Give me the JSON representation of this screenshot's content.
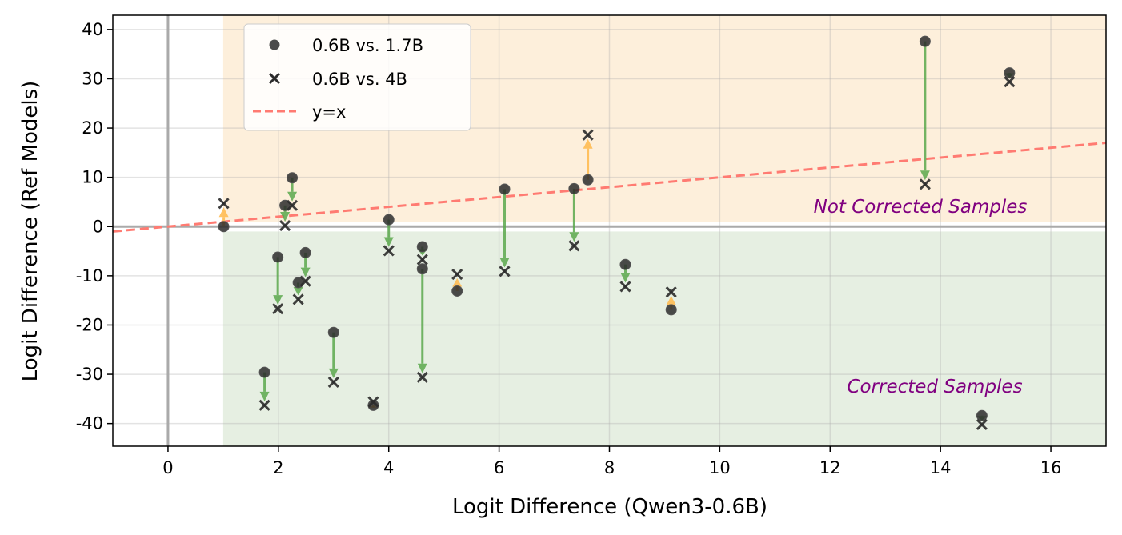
{
  "chart_data": {
    "type": "scatter",
    "title": "",
    "xlabel": "Logit Difference (Qwen3-0.6B)",
    "ylabel": "Logit Difference (Ref Models)",
    "xlim": [
      -1,
      17
    ],
    "ylim": [
      -44.6,
      42.9
    ],
    "xticks": [
      0,
      2,
      4,
      6,
      8,
      10,
      12,
      14,
      16
    ],
    "yticks": [
      40,
      30,
      20,
      10,
      0,
      -10,
      -20,
      -30,
      -40
    ],
    "grid": true,
    "legend_placement": "upper-left",
    "legend": [
      {
        "label": "0.6B vs. 1.7B",
        "marker": "circle"
      },
      {
        "label": "0.6B vs. 4B",
        "marker": "x"
      },
      {
        "label": "y=x",
        "marker": "dashed-line"
      }
    ],
    "annotations": {
      "not_corrected": "Not Corrected Samples",
      "corrected": "Corrected Samples"
    },
    "regions": {
      "not_corrected": {
        "x": [
          1,
          17
        ],
        "y": [
          1,
          42.9
        ],
        "color": "#fdefdb"
      },
      "corrected": {
        "x": [
          1,
          17
        ],
        "y": [
          -44.6,
          -1
        ],
        "color": "#e6efe2"
      }
    },
    "colors": {
      "marker": "#2b2b2b",
      "arrow_decrease": "#5aa84c",
      "arrow_increase": "#ffb84a",
      "identity_line": "#ff7b72",
      "annotation_text": "#800080",
      "axis_zero": "#aaaaaa"
    },
    "points": [
      {
        "x": 1.01,
        "y_1_7B": 0.0,
        "y_4B": 4.7
      },
      {
        "x": 1.75,
        "y_1_7B": -29.6,
        "y_4B": -36.3
      },
      {
        "x": 1.99,
        "y_1_7B": -6.2,
        "y_4B": -16.7
      },
      {
        "x": 2.12,
        "y_1_7B": 4.3,
        "y_4B": 0.2
      },
      {
        "x": 2.25,
        "y_1_7B": 9.9,
        "y_4B": 4.3
      },
      {
        "x": 2.36,
        "y_1_7B": -11.4,
        "y_4B": -14.8
      },
      {
        "x": 2.49,
        "y_1_7B": -5.3,
        "y_4B": -11.1
      },
      {
        "x": 3.0,
        "y_1_7B": -21.5,
        "y_4B": -31.6
      },
      {
        "x": 3.72,
        "y_1_7B": -36.3,
        "y_4B": -35.6
      },
      {
        "x": 4.0,
        "y_1_7B": 1.4,
        "y_4B": -4.9
      },
      {
        "x": 4.61,
        "y_1_7B": -4.1,
        "y_4B": -6.7
      },
      {
        "x": 4.61,
        "y_1_7B": -8.6,
        "y_4B": -30.6
      },
      {
        "x": 5.24,
        "y_1_7B": -13.1,
        "y_4B": -9.7
      },
      {
        "x": 6.1,
        "y_1_7B": 7.6,
        "y_4B": -9.1
      },
      {
        "x": 7.36,
        "y_1_7B": 7.7,
        "y_4B": -3.9
      },
      {
        "x": 7.61,
        "y_1_7B": 9.5,
        "y_4B": 18.6
      },
      {
        "x": 8.29,
        "y_1_7B": -7.7,
        "y_4B": -12.2
      },
      {
        "x": 9.12,
        "y_1_7B": -16.9,
        "y_4B": -13.3
      },
      {
        "x": 13.72,
        "y_1_7B": 37.6,
        "y_4B": 8.6
      },
      {
        "x": 14.75,
        "y_1_7B": -38.4,
        "y_4B": -40.2
      },
      {
        "x": 15.25,
        "y_1_7B": 31.2,
        "y_4B": 29.4
      }
    ]
  }
}
